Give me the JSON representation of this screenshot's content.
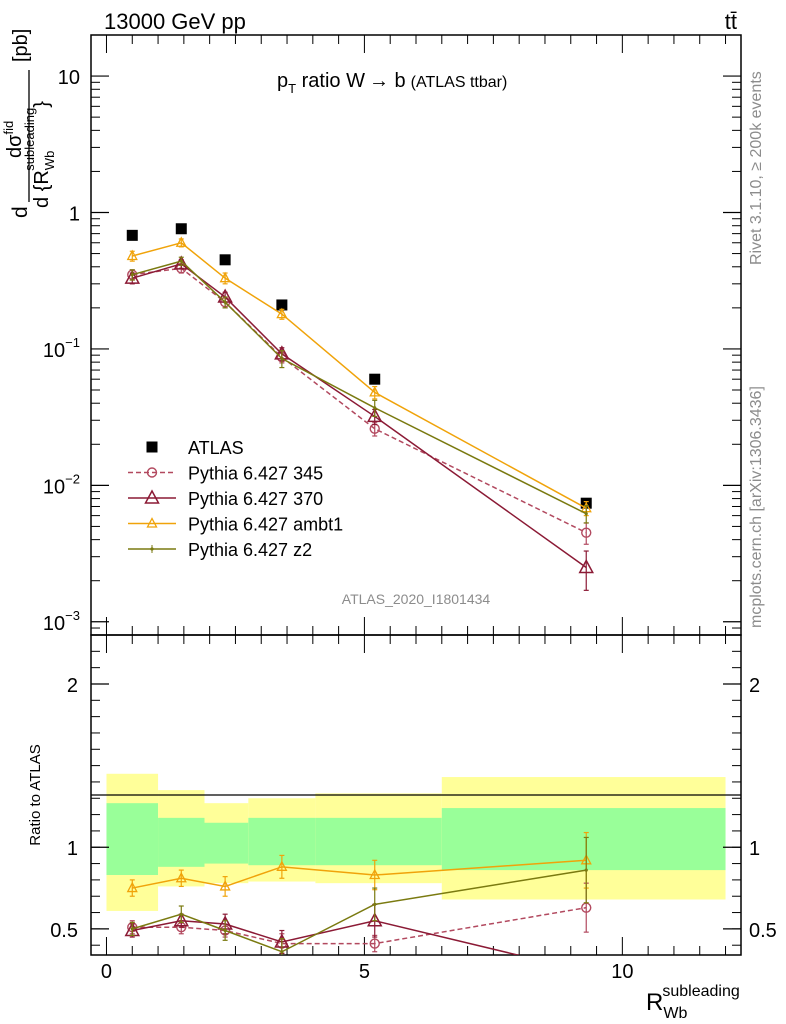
{
  "header": {
    "left": "13000 GeV pp",
    "right": "tt̄"
  },
  "side_text": {
    "top": "Rivet 3.1.10, ≥ 200k events",
    "bottom": "mcplots.cern.ch [arXiv:1306.3436]"
  },
  "chart_data": [
    {
      "type": "scatter",
      "panel": "main",
      "title": "p_T ratio W → b (ATLAS ttbar)",
      "title_parts": {
        "p": "p",
        "sub": "T",
        "rest": " ratio W",
        "arrow": "→",
        "b": " b",
        "tag": "(ATLAS ttbar)"
      },
      "ylabel": "d dσ^fid / d{R_Wb^subleading} [pb]",
      "ylabel_parts": {
        "d1": "d",
        "num": "dσ",
        "num_sup": "fid",
        "den": "d {R",
        "den_sub": "Wb",
        "den_sup": "subleading",
        "den_close": "}",
        "unit": "[pb]"
      },
      "yscale": "log",
      "ylim": [
        0.0008,
        20
      ],
      "xlim": [
        -0.3,
        12.3
      ],
      "y_ticks": [
        {
          "value": 0.001,
          "label": "10",
          "sup": "−3"
        },
        {
          "value": 0.01,
          "label": "10",
          "sup": "−2"
        },
        {
          "value": 0.1,
          "label": "10",
          "sup": "−1"
        },
        {
          "value": 1,
          "label": "1",
          "sup": ""
        },
        {
          "value": 10,
          "label": "10",
          "sup": ""
        }
      ],
      "watermark": "ATLAS_2020_I1801434",
      "legend_position": "lower-left",
      "series": [
        {
          "name": "ATLAS",
          "style": "data",
          "color": "#000000",
          "x": [
            0.5,
            1.45,
            2.3,
            3.4,
            5.2,
            9.3
          ],
          "y": [
            0.68,
            0.76,
            0.45,
            0.21,
            0.06,
            0.0074
          ],
          "xerr": [
            0.5,
            0.45,
            0.4,
            0.7,
            1.3,
            3.0
          ]
        },
        {
          "name": "Pythia 6.427 345",
          "style": "dashed-circle",
          "color": "#b2495f",
          "x": [
            0.5,
            1.45,
            2.3,
            3.4,
            5.2,
            9.3
          ],
          "y": [
            0.35,
            0.39,
            0.22,
            0.087,
            0.026,
            0.0045
          ],
          "yerr": [
            0.03,
            0.03,
            0.02,
            0.008,
            0.003,
            0.0008
          ]
        },
        {
          "name": "Pythia 6.427 370",
          "style": "solid-triangle-large",
          "color": "#8b1a35",
          "x": [
            0.5,
            1.45,
            2.3,
            3.4,
            5.2,
            9.3
          ],
          "y": [
            0.33,
            0.42,
            0.24,
            0.092,
            0.032,
            0.0025
          ],
          "yerr": [
            0.03,
            0.03,
            0.02,
            0.01,
            0.004,
            0.0008
          ]
        },
        {
          "name": "Pythia 6.427 ambt1",
          "style": "solid-triangle-small",
          "color": "#f0a30a",
          "x": [
            0.5,
            1.45,
            2.3,
            3.4,
            5.2,
            9.3
          ],
          "y": [
            0.48,
            0.6,
            0.33,
            0.18,
            0.048,
            0.0068
          ],
          "yerr": [
            0.04,
            0.04,
            0.03,
            0.015,
            0.005,
            0.0008
          ]
        },
        {
          "name": "Pythia 6.427 z2",
          "style": "solid-dot",
          "color": "#7a7a10",
          "x": [
            0.5,
            1.45,
            2.3,
            3.4,
            5.2,
            9.3
          ],
          "y": [
            0.35,
            0.44,
            0.22,
            0.085,
            0.037,
            0.0062
          ],
          "yerr": [
            0.03,
            0.03,
            0.02,
            0.012,
            0.005,
            0.0009
          ]
        }
      ]
    },
    {
      "type": "scatter",
      "panel": "ratio",
      "ylabel": "Ratio to ATLAS",
      "xlabel": "R_Wb^subleading",
      "xlabel_parts": {
        "main": "R",
        "sub": "Wb",
        "sup": "subleading"
      },
      "ylim": [
        0.34,
        2.3
      ],
      "xlim": [
        -0.3,
        12.3
      ],
      "x_ticks": [
        0,
        5,
        10
      ],
      "y_ticks": [
        0.5,
        1,
        2
      ],
      "bands": {
        "edges": [
          0,
          1,
          1.9,
          2.75,
          4.05,
          6.5,
          12.0
        ],
        "inner": [
          [
            0.83,
            1.27
          ],
          [
            0.88,
            1.18
          ],
          [
            0.9,
            1.15
          ],
          [
            0.89,
            1.18
          ],
          [
            0.89,
            1.18
          ],
          [
            0.86,
            1.24
          ]
        ],
        "outer": [
          [
            0.61,
            1.45
          ],
          [
            0.76,
            1.35
          ],
          [
            0.78,
            1.27
          ],
          [
            0.79,
            1.3
          ],
          [
            0.78,
            1.33
          ],
          [
            0.68,
            1.43
          ]
        ],
        "inner_color": "#99ff99",
        "outer_color": "#ffff99"
      },
      "series": [
        {
          "name": "Pythia 6.427 345",
          "x": [
            0.5,
            1.45,
            2.3,
            3.4,
            5.2,
            9.3
          ],
          "y": [
            0.51,
            0.51,
            0.49,
            0.41,
            0.41,
            0.63
          ],
          "yerr": [
            0.04,
            0.04,
            0.04,
            0.06,
            0.05,
            0.15
          ]
        },
        {
          "name": "Pythia 6.427 370",
          "x": [
            0.5,
            1.45,
            2.3,
            3.4,
            5.2,
            8.1
          ],
          "y": [
            0.49,
            0.55,
            0.53,
            0.42,
            0.55,
            0.33
          ],
          "yerr": [
            0.04,
            0.04,
            0.06,
            0.07,
            0.1,
            0.0
          ]
        },
        {
          "name": "Pythia 6.427 ambt1",
          "x": [
            0.5,
            1.45,
            2.3,
            3.4,
            5.2,
            9.3
          ],
          "y": [
            0.75,
            0.81,
            0.76,
            0.88,
            0.83,
            0.92
          ],
          "yerr": [
            0.05,
            0.05,
            0.06,
            0.07,
            0.09,
            0.17
          ]
        },
        {
          "name": "Pythia 6.427 z2",
          "x": [
            0.5,
            1.45,
            2.3,
            3.4,
            5.2,
            9.3
          ],
          "y": [
            0.5,
            0.59,
            0.49,
            0.36,
            0.65,
            0.86
          ],
          "yerr": [
            0.04,
            0.05,
            0.06,
            0.08,
            0.1,
            0.2
          ]
        }
      ]
    }
  ]
}
